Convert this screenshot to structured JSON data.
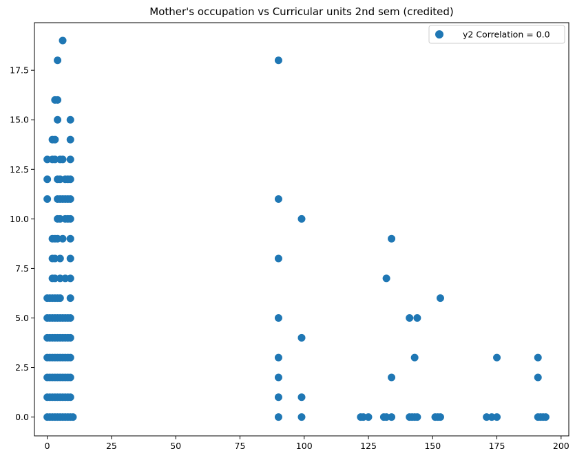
{
  "chart_data": {
    "type": "scatter",
    "title": "Mother's occupation vs Curricular units 2nd sem (credited)",
    "xlabel": "",
    "ylabel": "",
    "xlim": [
      -5,
      203
    ],
    "ylim": [
      -0.95,
      19.9
    ],
    "xticks": [
      0,
      25,
      50,
      75,
      100,
      125,
      150,
      175,
      200
    ],
    "yticks": [
      0.0,
      2.5,
      5.0,
      7.5,
      10.0,
      12.5,
      15.0,
      17.5
    ],
    "ytick_labels": [
      "0.0",
      "2.5",
      "5.0",
      "7.5",
      "10.0",
      "12.5",
      "15.0",
      "17.5"
    ],
    "grid": false,
    "legend": {
      "position": "top-right",
      "entries": [
        "y2 Correlation = 0.0"
      ]
    },
    "colors": {
      "marker": "#1f77b4",
      "axis": "#000000",
      "background": "#ffffff"
    },
    "series": [
      {
        "name": "y2 Correlation = 0.0",
        "points": [
          [
            0,
            0
          ],
          [
            1,
            0
          ],
          [
            2,
            0
          ],
          [
            3,
            0
          ],
          [
            4,
            0
          ],
          [
            5,
            0
          ],
          [
            6,
            0
          ],
          [
            7,
            0
          ],
          [
            8,
            0
          ],
          [
            9,
            0
          ],
          [
            10,
            0
          ],
          [
            0,
            1
          ],
          [
            1,
            1
          ],
          [
            2,
            1
          ],
          [
            3,
            1
          ],
          [
            4,
            1
          ],
          [
            5,
            1
          ],
          [
            6,
            1
          ],
          [
            7,
            1
          ],
          [
            8,
            1
          ],
          [
            9,
            1
          ],
          [
            0,
            2
          ],
          [
            1,
            2
          ],
          [
            2,
            2
          ],
          [
            3,
            2
          ],
          [
            4,
            2
          ],
          [
            5,
            2
          ],
          [
            6,
            2
          ],
          [
            7,
            2
          ],
          [
            8,
            2
          ],
          [
            9,
            2
          ],
          [
            0,
            3
          ],
          [
            1,
            3
          ],
          [
            2,
            3
          ],
          [
            3,
            3
          ],
          [
            4,
            3
          ],
          [
            5,
            3
          ],
          [
            6,
            3
          ],
          [
            7,
            3
          ],
          [
            8,
            3
          ],
          [
            9,
            3
          ],
          [
            0,
            4
          ],
          [
            1,
            4
          ],
          [
            2,
            4
          ],
          [
            3,
            4
          ],
          [
            4,
            4
          ],
          [
            5,
            4
          ],
          [
            6,
            4
          ],
          [
            7,
            4
          ],
          [
            8,
            4
          ],
          [
            9,
            4
          ],
          [
            0,
            5
          ],
          [
            1,
            5
          ],
          [
            2,
            5
          ],
          [
            3,
            5
          ],
          [
            4,
            5
          ],
          [
            5,
            5
          ],
          [
            6,
            5
          ],
          [
            7,
            5
          ],
          [
            8,
            5
          ],
          [
            9,
            5
          ],
          [
            0,
            6
          ],
          [
            1,
            6
          ],
          [
            2,
            6
          ],
          [
            3,
            6
          ],
          [
            4,
            6
          ],
          [
            5,
            6
          ],
          [
            9,
            6
          ],
          [
            2,
            7
          ],
          [
            3,
            7
          ],
          [
            5,
            7
          ],
          [
            7,
            7
          ],
          [
            9,
            7
          ],
          [
            2,
            8
          ],
          [
            3,
            8
          ],
          [
            5,
            8
          ],
          [
            9,
            8
          ],
          [
            2,
            9
          ],
          [
            3,
            9
          ],
          [
            4,
            9
          ],
          [
            6,
            9
          ],
          [
            9,
            9
          ],
          [
            4,
            10
          ],
          [
            5,
            10
          ],
          [
            7,
            10
          ],
          [
            8,
            10
          ],
          [
            9,
            10
          ],
          [
            0,
            11
          ],
          [
            4,
            11
          ],
          [
            5,
            11
          ],
          [
            6,
            11
          ],
          [
            7,
            11
          ],
          [
            8,
            11
          ],
          [
            9,
            11
          ],
          [
            0,
            12
          ],
          [
            4,
            12
          ],
          [
            5,
            12
          ],
          [
            7,
            12
          ],
          [
            8,
            12
          ],
          [
            9,
            12
          ],
          [
            0,
            13
          ],
          [
            2,
            13
          ],
          [
            3,
            13
          ],
          [
            5,
            13
          ],
          [
            6,
            13
          ],
          [
            9,
            13
          ],
          [
            2,
            14
          ],
          [
            3,
            14
          ],
          [
            9,
            14
          ],
          [
            4,
            15
          ],
          [
            9,
            15
          ],
          [
            3,
            16
          ],
          [
            4,
            16
          ],
          [
            4,
            18
          ],
          [
            6,
            19
          ],
          [
            90,
            0
          ],
          [
            90,
            1
          ],
          [
            90,
            2
          ],
          [
            90,
            3
          ],
          [
            90,
            5
          ],
          [
            90,
            8
          ],
          [
            90,
            11
          ],
          [
            90,
            18
          ],
          [
            99,
            0
          ],
          [
            99,
            1
          ],
          [
            99,
            4
          ],
          [
            99,
            10
          ],
          [
            122,
            0
          ],
          [
            123,
            0
          ],
          [
            125,
            0
          ],
          [
            131,
            0
          ],
          [
            132,
            0
          ],
          [
            134,
            0
          ],
          [
            132,
            7
          ],
          [
            134,
            2
          ],
          [
            134,
            9
          ],
          [
            141,
            0
          ],
          [
            142,
            0
          ],
          [
            143,
            0
          ],
          [
            144,
            0
          ],
          [
            141,
            5
          ],
          [
            143,
            3
          ],
          [
            144,
            5
          ],
          [
            151,
            0
          ],
          [
            152,
            0
          ],
          [
            153,
            0
          ],
          [
            153,
            6
          ],
          [
            171,
            0
          ],
          [
            173,
            0
          ],
          [
            175,
            0
          ],
          [
            175,
            3
          ],
          [
            191,
            0
          ],
          [
            192,
            0
          ],
          [
            193,
            0
          ],
          [
            194,
            0
          ],
          [
            191,
            2
          ],
          [
            191,
            3
          ]
        ]
      }
    ]
  }
}
